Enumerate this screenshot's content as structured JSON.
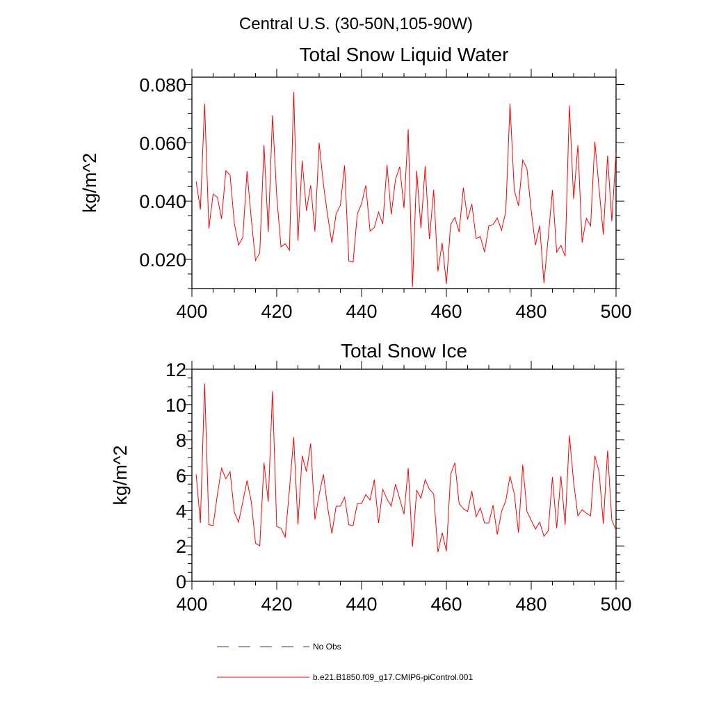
{
  "page_title": "Central U.S. (30-50N,105-90W)",
  "legend": [
    {
      "label": "No Obs",
      "color": "#2b3a8c",
      "style": "dashed"
    },
    {
      "label": "b.e21.B1850.f09_g17.CMIP6-piControl.001",
      "color": "#ff0000",
      "style": "solid"
    }
  ],
  "chart_data": [
    {
      "type": "line",
      "title": "Total Snow Liquid Water",
      "xlabel": "",
      "ylabel": "kg/m^2",
      "xlim": [
        400,
        500
      ],
      "ylim": [
        0.01,
        0.0825
      ],
      "x_ticks": [
        400,
        420,
        440,
        460,
        480,
        500
      ],
      "x_tick_labels": [
        "400",
        "420",
        "440",
        "460",
        "480",
        "500"
      ],
      "y_ticks": [
        0.02,
        0.04,
        0.06,
        0.08
      ],
      "y_tick_labels": [
        "0.020",
        "0.040",
        "0.060",
        "0.080"
      ],
      "grid": false,
      "series": [
        {
          "name": "b.e21.B1850.f09_g17.CMIP6-piControl.001",
          "color": "#ff0000",
          "x": [
            401,
            402,
            403,
            404,
            405,
            406,
            407,
            408,
            409,
            410,
            411,
            412,
            413,
            414,
            415,
            416,
            417,
            418,
            419,
            420,
            421,
            422,
            423,
            424,
            425,
            426,
            427,
            428,
            429,
            430,
            431,
            432,
            433,
            434,
            435,
            436,
            437,
            438,
            439,
            440,
            441,
            442,
            443,
            444,
            445,
            446,
            447,
            448,
            449,
            450,
            451,
            452,
            453,
            454,
            455,
            456,
            457,
            458,
            459,
            460,
            461,
            462,
            463,
            464,
            465,
            466,
            467,
            468,
            469,
            470,
            471,
            472,
            473,
            474,
            475,
            476,
            477,
            478,
            479,
            480,
            481,
            482,
            483,
            484,
            485,
            486,
            487,
            488,
            489,
            490,
            491,
            492,
            493,
            494,
            495,
            496,
            497,
            498,
            499,
            500
          ],
          "values": [
            0.0467,
            0.0371,
            0.0734,
            0.0306,
            0.0424,
            0.0413,
            0.0339,
            0.0504,
            0.0489,
            0.0324,
            0.0249,
            0.0275,
            0.0503,
            0.0338,
            0.0196,
            0.0223,
            0.0592,
            0.0294,
            0.0694,
            0.0417,
            0.0243,
            0.0254,
            0.0231,
            0.0774,
            0.0264,
            0.0538,
            0.0367,
            0.0454,
            0.0295,
            0.06,
            0.0458,
            0.0351,
            0.0256,
            0.0356,
            0.0386,
            0.0522,
            0.0194,
            0.0191,
            0.0356,
            0.0391,
            0.0454,
            0.0297,
            0.0309,
            0.0362,
            0.0321,
            0.0524,
            0.0354,
            0.0474,
            0.0518,
            0.0376,
            0.0646,
            0.0105,
            0.0504,
            0.0307,
            0.052,
            0.0269,
            0.0439,
            0.0159,
            0.0257,
            0.0116,
            0.032,
            0.0344,
            0.0294,
            0.0446,
            0.0337,
            0.039,
            0.0272,
            0.0278,
            0.0225,
            0.0315,
            0.0319,
            0.0342,
            0.03,
            0.0364,
            0.0734,
            0.0437,
            0.0384,
            0.0541,
            0.0511,
            0.0366,
            0.0249,
            0.0316,
            0.0119,
            0.0274,
            0.0438,
            0.0225,
            0.0248,
            0.0211,
            0.0728,
            0.0407,
            0.0592,
            0.0258,
            0.0341,
            0.0315,
            0.0604,
            0.0443,
            0.0285,
            0.0556,
            0.0331,
            0.0566
          ]
        }
      ]
    },
    {
      "type": "line",
      "title": "Total Snow Ice",
      "xlabel": "",
      "ylabel": "kg/m^2",
      "xlim": [
        400,
        500
      ],
      "ylim": [
        0,
        12
      ],
      "x_ticks": [
        400,
        420,
        440,
        460,
        480,
        500
      ],
      "x_tick_labels": [
        "400",
        "420",
        "440",
        "460",
        "480",
        "500"
      ],
      "y_ticks": [
        0,
        2,
        4,
        6,
        8,
        10,
        12
      ],
      "y_tick_labels": [
        "0",
        "2",
        "4",
        "6",
        "8",
        "10",
        "12"
      ],
      "grid": false,
      "series": [
        {
          "name": "b.e21.B1850.f09_g17.CMIP6-piControl.001",
          "color": "#ff0000",
          "x": [
            401,
            402,
            403,
            404,
            405,
            406,
            407,
            408,
            409,
            410,
            411,
            412,
            413,
            414,
            415,
            416,
            417,
            418,
            419,
            420,
            421,
            422,
            423,
            424,
            425,
            426,
            427,
            428,
            429,
            430,
            431,
            432,
            433,
            434,
            435,
            436,
            437,
            438,
            439,
            440,
            441,
            442,
            443,
            444,
            445,
            446,
            447,
            448,
            449,
            450,
            451,
            452,
            453,
            454,
            455,
            456,
            457,
            458,
            459,
            460,
            461,
            462,
            463,
            464,
            465,
            466,
            467,
            468,
            469,
            470,
            471,
            472,
            473,
            474,
            475,
            476,
            477,
            478,
            479,
            480,
            481,
            482,
            483,
            484,
            485,
            486,
            487,
            488,
            489,
            490,
            491,
            492,
            493,
            494,
            495,
            496,
            497,
            498,
            499,
            500
          ],
          "values": [
            6.05,
            3.3,
            11.2,
            3.2,
            3.15,
            4.9,
            6.4,
            5.8,
            6.2,
            3.9,
            3.35,
            4.5,
            5.7,
            4.5,
            2.15,
            2.0,
            6.7,
            4.5,
            10.75,
            3.1,
            3.0,
            2.5,
            5.2,
            8.15,
            3.2,
            7.1,
            6.2,
            7.8,
            3.5,
            4.9,
            6.05,
            4.2,
            2.7,
            4.25,
            4.25,
            4.75,
            3.2,
            3.15,
            4.4,
            4.4,
            4.9,
            4.6,
            5.75,
            3.3,
            5.2,
            4.65,
            4.25,
            5.5,
            4.65,
            3.8,
            6.4,
            1.95,
            5.15,
            4.7,
            5.75,
            5.2,
            4.95,
            1.65,
            2.75,
            1.7,
            6.05,
            6.7,
            4.4,
            4.1,
            3.95,
            5.1,
            3.65,
            4.15,
            3.3,
            3.3,
            4.3,
            2.65,
            3.95,
            4.55,
            5.95,
            4.95,
            2.75,
            6.6,
            3.95,
            3.45,
            2.95,
            3.35,
            2.55,
            2.85,
            5.9,
            3.0,
            5.95,
            3.2,
            8.25,
            5.6,
            3.7,
            4.05,
            3.85,
            3.7,
            7.1,
            6.2,
            3.25,
            7.4,
            3.45,
            2.9
          ]
        }
      ]
    }
  ]
}
